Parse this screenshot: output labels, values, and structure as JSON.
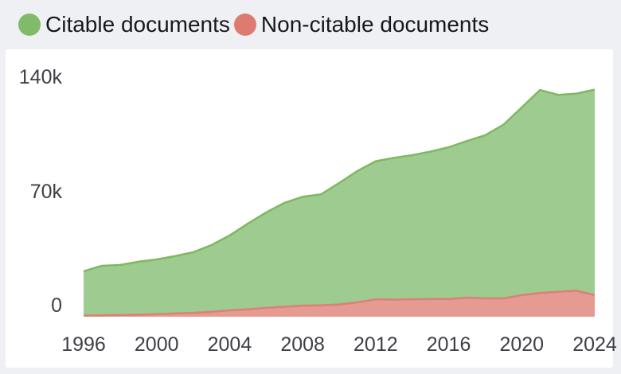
{
  "legend": {
    "items": [
      {
        "label": "Citable documents",
        "color": "#81ba68"
      },
      {
        "label": "Non-citable documents",
        "color": "#dd7b70"
      }
    ]
  },
  "axes": {
    "y_ticks": [
      {
        "label": "140k",
        "value": 140000
      },
      {
        "label": "70k",
        "value": 70000
      },
      {
        "label": "0",
        "value": 0
      }
    ],
    "x_ticks": [
      {
        "label": "1996",
        "value": 1996
      },
      {
        "label": "2000",
        "value": 2000
      },
      {
        "label": "2004",
        "value": 2004
      },
      {
        "label": "2008",
        "value": 2008
      },
      {
        "label": "2012",
        "value": 2012
      },
      {
        "label": "2016",
        "value": 2016
      },
      {
        "label": "2020",
        "value": 2020
      },
      {
        "label": "2024",
        "value": 2024
      }
    ]
  },
  "chart_data": {
    "type": "area",
    "stacked": true,
    "grid": false,
    "legend_position": "top-left",
    "xlabel": "",
    "ylabel": "",
    "xlim": [
      1996,
      2024
    ],
    "ylim": [
      0,
      140000
    ],
    "x": [
      1996,
      1997,
      1998,
      1999,
      2000,
      2001,
      2002,
      2003,
      2004,
      2005,
      2006,
      2007,
      2008,
      2009,
      2010,
      2011,
      2012,
      2013,
      2014,
      2015,
      2016,
      2017,
      2018,
      2019,
      2020,
      2021,
      2022,
      2023,
      2024
    ],
    "series": [
      {
        "name": "Citable documents",
        "fill": "#9ecb8f",
        "stroke": "#7fb862",
        "values": [
          27100,
          30400,
          30700,
          32500,
          33600,
          35100,
          37100,
          40900,
          45900,
          52500,
          58500,
          63700,
          66700,
          68000,
          74500,
          80500,
          84600,
          86900,
          88300,
          90300,
          93000,
          96000,
          100000,
          106500,
          115100,
          124500,
          120700,
          120900,
          126000
        ]
      },
      {
        "name": "Non-citable documents",
        "fill": "#e59a92",
        "stroke": "#db8177",
        "values": [
          700,
          800,
          1000,
          1200,
          1500,
          2000,
          2400,
          3000,
          3900,
          4600,
          5400,
          6100,
          6800,
          7000,
          7500,
          8800,
          10700,
          10500,
          10700,
          10900,
          10900,
          11700,
          11200,
          11200,
          13200,
          14500,
          15300,
          15900,
          13200
        ]
      }
    ]
  },
  "colors": {
    "page_background": "#eef0f4",
    "card_background": "#ffffff",
    "tick_text": "#3f4046",
    "legend_text": "#17181c"
  }
}
